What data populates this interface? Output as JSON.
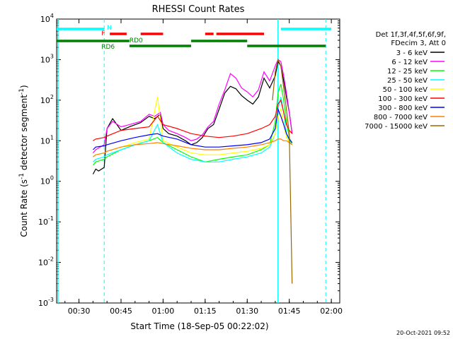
{
  "chart_data": {
    "type": "line",
    "title": "RHESSI Count Rates",
    "xlabel": "Start Time (18-Sep-05 00:22:02)",
    "ylabel": "Count Rate (s",
    "ylabel_sup": "-1",
    "ylabel_mid": " detector segment",
    "ylabel_sup2": "-1",
    "ylabel_end": ")",
    "y_scale": "log",
    "ylim": [
      0.001,
      10000
    ],
    "xlim": [
      "00:22:02",
      "02:03:00"
    ],
    "x_ticks": [
      "00:30",
      "00:45",
      "01:00",
      "01:15",
      "01:30",
      "01:45",
      "02:00"
    ],
    "y_ticks": [
      "10^-3",
      "10^-2",
      "10^-1",
      "10^0",
      "10^1",
      "10^2",
      "10^3",
      "10^4"
    ],
    "legend_title": [
      "Det 1f,3f,4f,5f,6f,9f,",
      "FDecim 3, Att 0"
    ],
    "legend_position": "right",
    "series": [
      {
        "name": "3 - 6 keV",
        "color": "#000000",
        "x": [
          "00:35",
          "00:36",
          "00:37",
          "00:39",
          "00:40",
          "00:42",
          "00:45",
          "00:48",
          "00:52",
          "00:55",
          "00:57",
          "00:59",
          "01:00",
          "01:02",
          "01:05",
          "01:08",
          "01:10",
          "01:12",
          "01:14",
          "01:16",
          "01:18",
          "01:20",
          "01:22",
          "01:24",
          "01:26",
          "01:28",
          "01:30",
          "01:32",
          "01:34",
          "01:36",
          "01:38",
          "01:40",
          "01:41",
          "01:42",
          "01:43",
          "01:44",
          "01:45",
          "01:46"
        ],
        "y": [
          1.5,
          2.0,
          1.8,
          2.2,
          20,
          35,
          18,
          22,
          28,
          40,
          35,
          45,
          20,
          15,
          13,
          10,
          8,
          9,
          12,
          20,
          25,
          60,
          150,
          220,
          190,
          130,
          100,
          80,
          120,
          350,
          200,
          400,
          900,
          700,
          300,
          120,
          50,
          15
        ]
      },
      {
        "name": "6 - 12 keV",
        "color": "#ff00ff",
        "x": [
          "00:35",
          "00:36",
          "00:39",
          "00:40",
          "00:42",
          "00:45",
          "00:48",
          "00:52",
          "00:55",
          "00:57",
          "00:59",
          "01:00",
          "01:02",
          "01:05",
          "01:08",
          "01:10",
          "01:12",
          "01:14",
          "01:16",
          "01:18",
          "01:20",
          "01:22",
          "01:24",
          "01:26",
          "01:28",
          "01:30",
          "01:32",
          "01:34",
          "01:36",
          "01:38",
          "01:40",
          "01:41",
          "01:42",
          "01:43",
          "01:44",
          "01:45",
          "01:46"
        ],
        "y": [
          5,
          6,
          8,
          20,
          30,
          22,
          25,
          30,
          45,
          40,
          50,
          25,
          18,
          15,
          12,
          10,
          11,
          14,
          22,
          30,
          80,
          180,
          450,
          350,
          200,
          160,
          120,
          180,
          500,
          300,
          700,
          1000,
          900,
          400,
          150,
          50,
          15
        ]
      },
      {
        "name": "12 - 25 keV",
        "color": "#00ff00",
        "x": [
          "00:35",
          "00:36",
          "00:39",
          "00:40",
          "00:45",
          "00:50",
          "00:55",
          "00:58",
          "01:00",
          "01:05",
          "01:10",
          "01:15",
          "01:20",
          "01:25",
          "01:30",
          "01:35",
          "01:38",
          "01:40",
          "01:41",
          "01:42",
          "01:43",
          "01:44",
          "01:45",
          "01:46"
        ],
        "y": [
          2.5,
          3,
          3.5,
          4,
          6,
          8,
          10,
          12,
          9,
          6,
          4,
          3,
          3.5,
          4,
          4.5,
          6,
          8,
          30,
          150,
          250,
          100,
          30,
          12,
          8
        ]
      },
      {
        "name": "25 - 50 keV",
        "color": "#00ffff",
        "x": [
          "00:35",
          "00:36",
          "00:39",
          "00:40",
          "00:45",
          "00:50",
          "00:55",
          "00:58",
          "01:00",
          "01:05",
          "01:10",
          "01:15",
          "01:20",
          "01:25",
          "01:30",
          "01:35",
          "01:38",
          "01:40",
          "01:41",
          "01:42",
          "01:43",
          "01:44",
          "01:45",
          "01:46"
        ],
        "y": [
          3,
          3.5,
          4,
          4.5,
          6,
          8,
          10,
          25,
          9,
          5,
          3.5,
          3,
          3,
          3.5,
          4,
          5,
          7,
          15,
          60,
          120,
          50,
          15,
          10,
          8
        ]
      },
      {
        "name": "50 - 100 keV",
        "color": "#ffff00",
        "x": [
          "00:35",
          "00:36",
          "00:39",
          "00:40",
          "00:45",
          "00:50",
          "00:55",
          "00:58",
          "01:00",
          "01:05",
          "01:10",
          "01:15",
          "01:20",
          "01:25",
          "01:30",
          "01:35",
          "01:38",
          "01:40",
          "01:41",
          "01:42",
          "01:43",
          "01:44",
          "01:45",
          "01:46"
        ],
        "y": [
          4,
          4.5,
          5,
          5.5,
          7,
          9,
          11,
          120,
          10,
          7,
          5,
          4.5,
          4.5,
          5,
          5.5,
          6.5,
          8,
          15,
          40,
          60,
          25,
          12,
          9,
          8
        ]
      },
      {
        "name": "100 - 300 keV",
        "color": "#ff0000",
        "x": [
          "00:35",
          "00:36",
          "00:39",
          "00:40",
          "00:45",
          "00:50",
          "00:55",
          "00:58",
          "01:00",
          "01:05",
          "01:10",
          "01:15",
          "01:20",
          "01:25",
          "01:30",
          "01:35",
          "01:38",
          "01:40",
          "01:41",
          "01:42",
          "01:43",
          "01:44",
          "01:45",
          "01:46"
        ],
        "y": [
          10,
          11,
          12,
          13,
          18,
          20,
          22,
          40,
          25,
          20,
          15,
          13,
          12,
          13,
          15,
          20,
          25,
          40,
          80,
          100,
          50,
          25,
          18,
          15
        ]
      },
      {
        "name": "300 - 800 keV",
        "color": "#0000ff",
        "x": [
          "00:35",
          "00:36",
          "00:39",
          "00:40",
          "00:45",
          "00:50",
          "00:55",
          "00:58",
          "01:00",
          "01:05",
          "01:10",
          "01:15",
          "01:20",
          "01:25",
          "01:30",
          "01:35",
          "01:38",
          "01:40",
          "01:41",
          "01:42",
          "01:43",
          "01:44",
          "01:45",
          "01:46"
        ],
        "y": [
          6,
          7,
          7.5,
          8,
          10,
          12,
          14,
          15,
          13,
          11,
          8,
          7,
          7,
          7.5,
          8,
          9,
          11,
          20,
          60,
          40,
          25,
          15,
          11,
          9
        ]
      },
      {
        "name": "800 - 7000 keV",
        "color": "#ff8000",
        "x": [
          "00:35",
          "00:36",
          "00:39",
          "00:40",
          "00:45",
          "00:50",
          "00:55",
          "00:58",
          "01:00",
          "01:05",
          "01:10",
          "01:15",
          "01:20",
          "01:25",
          "01:30",
          "01:35",
          "01:38",
          "01:40",
          "01:41",
          "01:42",
          "01:43",
          "01:44",
          "01:45",
          "01:46"
        ],
        "y": [
          4,
          4.5,
          5,
          5.5,
          7,
          8,
          8.5,
          9,
          8.5,
          7.5,
          6.5,
          6,
          6,
          6.5,
          7,
          8,
          9,
          10,
          11,
          11,
          10,
          10,
          9,
          8
        ]
      },
      {
        "name": "7000 - 15000 keV",
        "color": "#996600",
        "x": [
          "01:39",
          "01:40",
          "01:41",
          "01:42",
          "01:43",
          "01:44",
          "01:45",
          "01:46"
        ],
        "y": [
          100,
          500,
          1000,
          700,
          200,
          60,
          15,
          0.003
        ]
      }
    ],
    "attenuator_bars": [
      {
        "label": "N",
        "color": "#00ffff",
        "segments": [
          [
            "00:22:02",
            "00:39"
          ],
          [
            "01:42",
            "02:00"
          ]
        ]
      },
      {
        "label": "F",
        "color": "#ff0000",
        "segments": [
          [
            "00:41",
            "00:47"
          ],
          [
            "00:52",
            "01:00"
          ],
          [
            "01:15",
            "01:18"
          ],
          [
            "01:19",
            "01:36"
          ]
        ]
      },
      {
        "label": "RD0",
        "color": "#008000",
        "segments": [
          [
            "00:22:02",
            "00:48"
          ],
          [
            "01:10",
            "01:30"
          ]
        ]
      },
      {
        "label": "RD6",
        "color": "#008000",
        "segments": [
          [
            "00:48",
            "01:10"
          ],
          [
            "01:30",
            "01:58"
          ]
        ]
      }
    ],
    "vlines_dashed": [
      "00:39",
      "01:58"
    ],
    "vlines_solid": [
      "00:22:30",
      "01:41"
    ]
  },
  "footer": {
    "timestamp": "20-Oct-2021 09:52"
  }
}
